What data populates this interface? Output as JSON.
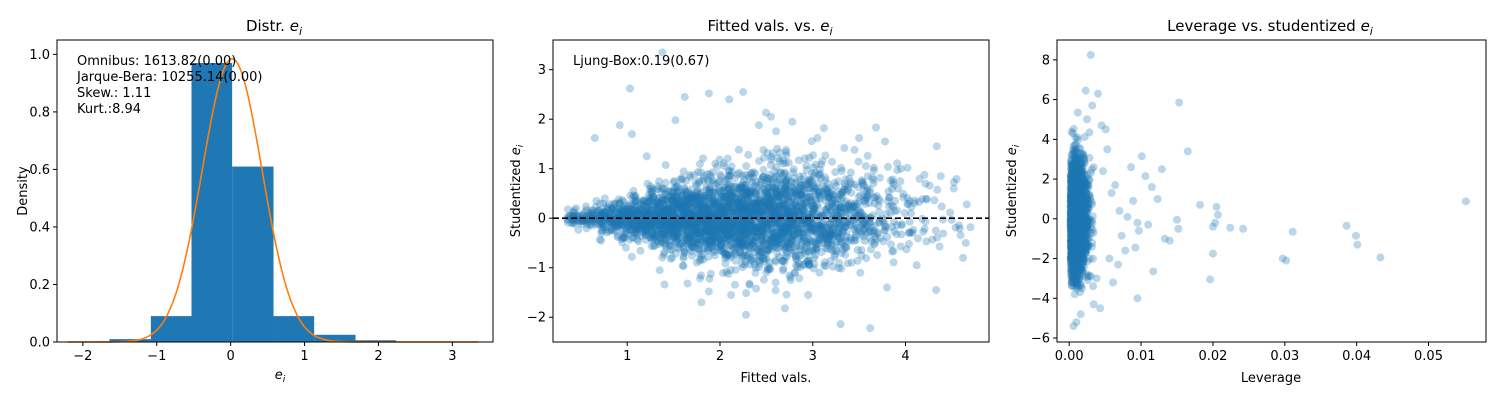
{
  "chart_data": [
    {
      "type": "bar",
      "title": "Distr. ",
      "title_math": "e",
      "title_sub": "i",
      "xlabel_math": "e",
      "xlabel_sub": "i",
      "ylabel": "Density",
      "xlim": [
        -2.35,
        3.55
      ],
      "ylim": [
        0,
        1.05
      ],
      "xticks": [
        -2,
        -1,
        0,
        1,
        2,
        3
      ],
      "yticks": [
        0.0,
        0.2,
        0.4,
        0.6,
        0.8,
        1.0
      ],
      "ytick_labels": [
        "0.0",
        "0.2",
        "0.4",
        "0.6",
        "0.8",
        "1.0"
      ],
      "bar_color": "#1f77b4",
      "curve_color": "#ff7f0e",
      "bins": [
        {
          "x0": -2.2,
          "x1": -1.64,
          "density": 0.002
        },
        {
          "x0": -1.64,
          "x1": -1.08,
          "density": 0.01
        },
        {
          "x0": -1.08,
          "x1": -0.53,
          "density": 0.09
        },
        {
          "x0": -0.53,
          "x1": 0.02,
          "density": 0.97
        },
        {
          "x0": 0.02,
          "x1": 0.58,
          "density": 0.61
        },
        {
          "x0": 0.58,
          "x1": 1.13,
          "density": 0.09
        },
        {
          "x0": 1.13,
          "x1": 1.69,
          "density": 0.025
        },
        {
          "x0": 1.69,
          "x1": 2.24,
          "density": 0.006
        },
        {
          "x0": 2.24,
          "x1": 2.8,
          "density": 0.001
        },
        {
          "x0": 2.8,
          "x1": 3.35,
          "density": 0.001
        }
      ],
      "curve": {
        "mean": 0.02,
        "std": 0.405,
        "xmin": -2.2,
        "xmax": 3.35
      },
      "annotations": [
        "Omnibus: 1613.82(0.00)",
        "Jarque-Bera: 10255.14(0.00)",
        "Skew.: 1.11",
        "Kurt.:8.94"
      ]
    },
    {
      "type": "scatter",
      "title": "Fitted vals. vs. ",
      "title_math": "e",
      "title_sub": "i",
      "xlabel": "Fitted vals.",
      "ylabel": "Studentized ",
      "ylabel_math": "e",
      "ylabel_sub": "i",
      "xlim": [
        0.2,
        4.9
      ],
      "ylim": [
        -2.5,
        3.6
      ],
      "xticks": [
        1,
        2,
        3,
        4
      ],
      "yticks": [
        -2,
        -1,
        0,
        1,
        2,
        3
      ],
      "hline": 0,
      "point_color": "#1f77b4",
      "annotation": "Ljung-Box:0.19(0.67)",
      "points": [
        [
          1.38,
          3.35
        ],
        [
          1.03,
          2.62
        ],
        [
          2.25,
          2.55
        ],
        [
          1.88,
          2.52
        ],
        [
          2.1,
          2.4
        ],
        [
          1.62,
          2.45
        ],
        [
          1.52,
          1.98
        ],
        [
          2.55,
          2.05
        ],
        [
          2.78,
          1.95
        ],
        [
          3.12,
          1.82
        ],
        [
          3.5,
          1.62
        ],
        [
          3.78,
          1.55
        ],
        [
          3.95,
          1.0
        ],
        [
          4.38,
          0.85
        ],
        [
          4.52,
          0.6
        ],
        [
          4.66,
          0.28
        ],
        [
          4.7,
          -0.18
        ],
        [
          4.65,
          -0.5
        ],
        [
          4.62,
          -0.8
        ],
        [
          4.33,
          -1.45
        ],
        [
          3.8,
          -1.4
        ],
        [
          3.62,
          -2.22
        ],
        [
          3.3,
          -2.14
        ],
        [
          2.7,
          -1.82
        ],
        [
          2.28,
          -1.95
        ],
        [
          2.12,
          -1.55
        ],
        [
          1.88,
          -1.48
        ],
        [
          1.65,
          -1.32
        ],
        [
          1.35,
          -1.05
        ],
        [
          1.05,
          -0.78
        ],
        [
          0.72,
          -0.45
        ],
        [
          0.45,
          0.2
        ],
        [
          0.65,
          1.62
        ],
        [
          0.92,
          1.88
        ],
        [
          1.05,
          1.7
        ],
        [
          1.21,
          1.25
        ],
        [
          3.45,
          1.38
        ],
        [
          2.95,
          -1.55
        ],
        [
          4.12,
          -0.95
        ],
        [
          0.36,
          0.18
        ],
        [
          0.4,
          -0.1
        ],
        [
          1.8,
          -1.7
        ],
        [
          2.6,
          -1.3
        ],
        [
          3.05,
          1.62
        ],
        [
          2.42,
          1.88
        ]
      ],
      "cloud": {
        "n": 3300,
        "seed": 7,
        "xmin": 0.35,
        "xmax": 4.6,
        "spread_min": 0.12,
        "spread_max": 0.78
      }
    },
    {
      "type": "scatter",
      "title": "Leverage vs. studentized ",
      "title_math": "e",
      "title_sub": "i",
      "xlabel": "Leverage",
      "ylabel": "Studentized ",
      "ylabel_math": "e",
      "ylabel_sub": "i",
      "xlim": [
        -0.0017,
        0.058
      ],
      "ylim": [
        -6.2,
        9.0
      ],
      "xticks": [
        0.0,
        0.01,
        0.02,
        0.03,
        0.04,
        0.05
      ],
      "xtick_labels": [
        "0.00",
        "0.01",
        "0.02",
        "0.03",
        "0.04",
        "0.05"
      ],
      "yticks": [
        -6,
        -4,
        -2,
        0,
        2,
        4,
        6,
        8
      ],
      "point_color": "#1f77b4",
      "points": [
        [
          0.003,
          8.25
        ],
        [
          0.0023,
          6.45
        ],
        [
          0.004,
          6.3
        ],
        [
          0.0153,
          5.85
        ],
        [
          0.0032,
          5.7
        ],
        [
          0.0012,
          5.35
        ],
        [
          0.0045,
          4.7
        ],
        [
          0.0051,
          4.5
        ],
        [
          0.0165,
          3.4
        ],
        [
          0.0101,
          3.15
        ],
        [
          0.0086,
          2.6
        ],
        [
          0.0106,
          2.15
        ],
        [
          0.0115,
          1.6
        ],
        [
          0.0123,
          1.0
        ],
        [
          0.0129,
          2.5
        ],
        [
          0.0182,
          0.7
        ],
        [
          0.0205,
          0.6
        ],
        [
          0.0207,
          0.2
        ],
        [
          0.0203,
          -0.2
        ],
        [
          0.0224,
          -0.45
        ],
        [
          0.0242,
          -0.5
        ],
        [
          0.02,
          -0.4
        ],
        [
          0.0152,
          -0.5
        ],
        [
          0.015,
          -0.05
        ],
        [
          0.0133,
          -1.0
        ],
        [
          0.014,
          -1.1
        ],
        [
          0.0097,
          -0.6
        ],
        [
          0.0092,
          -1.45
        ],
        [
          0.0117,
          -2.65
        ],
        [
          0.02,
          -1.75
        ],
        [
          0.0196,
          -3.05
        ],
        [
          0.0095,
          -4.0
        ],
        [
          0.0061,
          -3.2
        ],
        [
          0.0043,
          -4.5
        ],
        [
          0.0034,
          -4.3
        ],
        [
          0.0016,
          -4.8
        ],
        [
          0.0006,
          -5.4
        ],
        [
          0.001,
          -5.2
        ],
        [
          0.0297,
          -2.0
        ],
        [
          0.0302,
          -2.1
        ],
        [
          0.0311,
          -0.65
        ],
        [
          0.0386,
          -0.35
        ],
        [
          0.0399,
          -0.85
        ],
        [
          0.0401,
          -1.3
        ],
        [
          0.0433,
          -1.95
        ],
        [
          0.0552,
          0.88
        ],
        [
          0.0078,
          -1.6
        ],
        [
          0.007,
          0.4
        ],
        [
          0.0073,
          -0.85
        ],
        [
          0.0059,
          1.3
        ],
        [
          0.0064,
          1.7
        ],
        [
          0.0056,
          -2.0
        ],
        [
          0.0047,
          2.4
        ],
        [
          0.0053,
          3.5
        ],
        [
          0.0038,
          -3.0
        ],
        [
          0.0068,
          -2.3
        ],
        [
          0.0089,
          0.9
        ],
        [
          0.0081,
          0.1
        ],
        [
          0.0095,
          -0.2
        ],
        [
          0.011,
          -0.3
        ]
      ],
      "cloud": {
        "n": 2200,
        "seed": 11,
        "xmin": 0.0002,
        "xmax": 0.0034,
        "sd": 1.45
      }
    }
  ]
}
